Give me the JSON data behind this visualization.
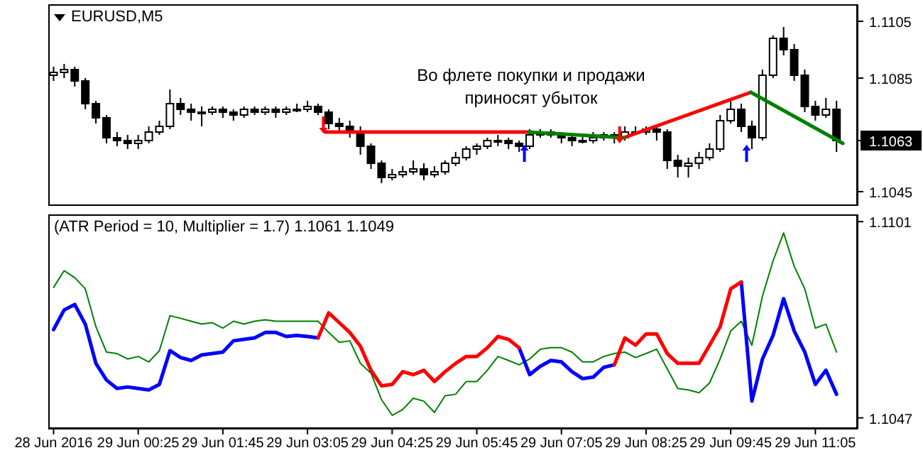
{
  "chart_data": [
    {
      "type": "candlestick",
      "title": "EURUSD,M5",
      "color": "#000000",
      "tick_labels": "y",
      "annotations": [
        "Во флете покупки и продажи приносят убыток"
      ],
      "x": [
        "2016-06-28T23:05",
        "2016-06-28T23:15",
        "2016-06-28T23:25",
        "2016-06-28T23:35",
        "2016-06-28T23:45",
        "2016-06-28T23:55",
        "2016-06-29T00:05",
        "2016-06-29T00:15",
        "2016-06-29T00:25",
        "2016-06-29T00:35",
        "2016-06-29T00:45",
        "2016-06-29T00:55",
        "2016-06-29T01:05",
        "2016-06-29T01:15",
        "2016-06-29T01:25",
        "2016-06-29T01:35",
        "2016-06-29T01:45",
        "2016-06-29T01:55",
        "2016-06-29T02:05",
        "2016-06-29T02:15",
        "2016-06-29T02:25",
        "2016-06-29T02:35",
        "2016-06-29T02:45",
        "2016-06-29T02:55",
        "2016-06-29T03:05",
        "2016-06-29T03:15",
        "2016-06-29T03:25",
        "2016-06-29T03:35",
        "2016-06-29T03:45",
        "2016-06-29T03:55",
        "2016-06-29T04:05",
        "2016-06-29T04:15",
        "2016-06-29T04:25",
        "2016-06-29T04:35",
        "2016-06-29T04:45",
        "2016-06-29T04:55",
        "2016-06-29T05:05",
        "2016-06-29T05:15",
        "2016-06-29T05:25",
        "2016-06-29T05:35",
        "2016-06-29T05:45",
        "2016-06-29T05:55",
        "2016-06-29T06:05",
        "2016-06-29T06:15",
        "2016-06-29T06:25",
        "2016-06-29T06:35",
        "2016-06-29T06:45",
        "2016-06-29T06:55",
        "2016-06-29T07:05",
        "2016-06-29T07:15",
        "2016-06-29T07:25",
        "2016-06-29T07:35",
        "2016-06-29T07:45",
        "2016-06-29T07:55",
        "2016-06-29T08:05",
        "2016-06-29T08:15",
        "2016-06-29T08:25",
        "2016-06-29T08:35",
        "2016-06-29T08:45",
        "2016-06-29T08:55",
        "2016-06-29T09:05",
        "2016-06-29T09:15",
        "2016-06-29T09:25",
        "2016-06-29T09:35",
        "2016-06-29T09:45",
        "2016-06-29T09:55",
        "2016-06-29T10:05",
        "2016-06-29T10:15",
        "2016-06-29T10:25",
        "2016-06-29T10:35",
        "2016-06-29T10:45",
        "2016-06-29T10:55",
        "2016-06-29T11:05",
        "2016-06-29T11:15",
        "2016-06-29T11:25"
      ],
      "ohlc": [
        [
          1.1086,
          1.1089,
          1.1084,
          1.1087
        ],
        [
          1.1087,
          1.109,
          1.1085,
          1.1088
        ],
        [
          1.1088,
          1.1089,
          1.1082,
          1.1084
        ],
        [
          1.1084,
          1.1085,
          1.1074,
          1.1076
        ],
        [
          1.1076,
          1.1077,
          1.1069,
          1.1071
        ],
        [
          1.1071,
          1.1072,
          1.1062,
          1.1064
        ],
        [
          1.1064,
          1.1066,
          1.1061,
          1.1063
        ],
        [
          1.1063,
          1.1065,
          1.106,
          1.1062
        ],
        [
          1.1062,
          1.1065,
          1.106,
          1.1063
        ],
        [
          1.1063,
          1.1068,
          1.1062,
          1.1066
        ],
        [
          1.1066,
          1.107,
          1.1065,
          1.1068
        ],
        [
          1.1068,
          1.1081,
          1.1067,
          1.1076
        ],
        [
          1.1076,
          1.1078,
          1.1072,
          1.1074
        ],
        [
          1.1074,
          1.1076,
          1.107,
          1.1073
        ],
        [
          1.1073,
          1.1075,
          1.1068,
          1.1073
        ],
        [
          1.1073,
          1.1075,
          1.1072,
          1.1074
        ],
        [
          1.1074,
          1.1075,
          1.1071,
          1.1073
        ],
        [
          1.1073,
          1.1074,
          1.107,
          1.1072
        ],
        [
          1.1072,
          1.1075,
          1.1071,
          1.1074
        ],
        [
          1.1074,
          1.1075,
          1.1072,
          1.1073
        ],
        [
          1.1073,
          1.1075,
          1.1072,
          1.1074
        ],
        [
          1.1074,
          1.1075,
          1.1071,
          1.1073
        ],
        [
          1.1073,
          1.1075,
          1.1072,
          1.1074
        ],
        [
          1.1074,
          1.1076,
          1.1073,
          1.1074
        ],
        [
          1.1074,
          1.1077,
          1.1073,
          1.1075
        ],
        [
          1.1075,
          1.1076,
          1.1072,
          1.1073
        ],
        [
          1.1073,
          1.1074,
          1.1067,
          1.1069
        ],
        [
          1.1069,
          1.1071,
          1.1066,
          1.1068
        ],
        [
          1.1068,
          1.107,
          1.1064,
          1.1066
        ],
        [
          1.1066,
          1.1068,
          1.1058,
          1.1061
        ],
        [
          1.1061,
          1.1062,
          1.1053,
          1.1055
        ],
        [
          1.1055,
          1.1056,
          1.1048,
          1.105
        ],
        [
          1.105,
          1.1053,
          1.1049,
          1.1051
        ],
        [
          1.1051,
          1.1054,
          1.105,
          1.1052
        ],
        [
          1.1052,
          1.1056,
          1.1051,
          1.1053
        ],
        [
          1.1053,
          1.1055,
          1.1049,
          1.1051
        ],
        [
          1.1051,
          1.1054,
          1.105,
          1.1052
        ],
        [
          1.1052,
          1.1056,
          1.1051,
          1.1055
        ],
        [
          1.1055,
          1.1059,
          1.1054,
          1.1057
        ],
        [
          1.1057,
          1.1061,
          1.1056,
          1.106
        ],
        [
          1.106,
          1.1062,
          1.1058,
          1.1061
        ],
        [
          1.1061,
          1.1064,
          1.106,
          1.1063
        ],
        [
          1.1063,
          1.1065,
          1.1061,
          1.1063
        ],
        [
          1.1063,
          1.1064,
          1.106,
          1.1062
        ],
        [
          1.1062,
          1.1063,
          1.1059,
          1.1061
        ],
        [
          1.1061,
          1.1067,
          1.106,
          1.1065
        ],
        [
          1.1065,
          1.1067,
          1.1064,
          1.1066
        ],
        [
          1.1066,
          1.1067,
          1.1064,
          1.1065
        ],
        [
          1.1065,
          1.1066,
          1.1062,
          1.1064
        ],
        [
          1.1064,
          1.1065,
          1.1061,
          1.1063
        ],
        [
          1.1063,
          1.1065,
          1.1062,
          1.1063
        ],
        [
          1.1063,
          1.1066,
          1.1062,
          1.1064
        ],
        [
          1.1064,
          1.1066,
          1.1063,
          1.1065
        ],
        [
          1.1065,
          1.1066,
          1.1062,
          1.1064
        ],
        [
          1.1064,
          1.1068,
          1.1063,
          1.1066
        ],
        [
          1.1066,
          1.1068,
          1.1065,
          1.1066
        ],
        [
          1.1066,
          1.1068,
          1.1065,
          1.1067
        ],
        [
          1.1067,
          1.1068,
          1.1063,
          1.1066
        ],
        [
          1.1066,
          1.1067,
          1.1053,
          1.1056
        ],
        [
          1.1056,
          1.1058,
          1.105,
          1.1054
        ],
        [
          1.1054,
          1.1057,
          1.105,
          1.1055
        ],
        [
          1.1055,
          1.1059,
          1.1053,
          1.1057
        ],
        [
          1.1057,
          1.1062,
          1.1056,
          1.106
        ],
        [
          1.106,
          1.1072,
          1.1059,
          1.107
        ],
        [
          1.107,
          1.1078,
          1.1069,
          1.1074
        ],
        [
          1.1074,
          1.1076,
          1.1066,
          1.1068
        ],
        [
          1.1068,
          1.107,
          1.106,
          1.1064
        ],
        [
          1.1064,
          1.1088,
          1.1063,
          1.1086
        ],
        [
          1.1086,
          1.11,
          1.1085,
          1.1099
        ],
        [
          1.1099,
          1.1103,
          1.1093,
          1.1095
        ],
        [
          1.1095,
          1.1097,
          1.1084,
          1.1086
        ],
        [
          1.1086,
          1.1088,
          1.1073,
          1.1075
        ],
        [
          1.1075,
          1.1077,
          1.107,
          1.1072
        ],
        [
          1.1072,
          1.1078,
          1.1071,
          1.1074
        ],
        [
          1.1074,
          1.1077,
          1.1059,
          1.1063
        ]
      ],
      "series": [
        {
          "type": "line",
          "color": "#ff0000",
          "x": [
            "2016-06-29T03:22",
            "2016-06-29T06:34",
            "2016-06-29T07:19",
            "2016-06-29T08:04",
            "2016-06-29T10:04"
          ],
          "values": [
            1.1066,
            1.1066,
            null,
            1.1064,
            1.108
          ]
        },
        {
          "type": "line",
          "color": "#008000",
          "x": [
            "2016-06-29T06:34",
            "2016-06-29T08:04",
            "2016-06-29T09:04",
            "2016-06-29T10:04",
            "2016-06-29T11:31"
          ],
          "values": [
            1.1066,
            1.1064,
            null,
            1.108,
            1.1062
          ]
        },
        {
          "type": "scatter",
          "color": "#ff0000",
          "x": [
            "2016-06-29T03:20",
            "2016-06-29T08:00"
          ],
          "values": [
            1.10685,
            1.1065
          ]
        },
        {
          "type": "scatter",
          "color": "#0000ff",
          "x": [
            "2016-06-29T06:30",
            "2016-06-29T10:00"
          ],
          "values": [
            1.10585,
            1.10585
          ]
        }
      ],
      "xlim": [
        "2016-06-28T23:00",
        "2016-06-29T11:45"
      ],
      "ylim": [
        1.104,
        1.1111
      ],
      "yticks": [
        1.1105,
        1.1085,
        1.1063,
        1.1045
      ]
    },
    {
      "type": "line",
      "title": "(ATR Period = 10, Multiplier = 1.7) 1.1061 1.1049",
      "x": [
        "2016-06-28T23:05",
        "2016-06-28T23:15",
        "2016-06-28T23:25",
        "2016-06-28T23:35",
        "2016-06-28T23:45",
        "2016-06-28T23:55",
        "2016-06-29T00:05",
        "2016-06-29T00:15",
        "2016-06-29T00:25",
        "2016-06-29T00:35",
        "2016-06-29T00:45",
        "2016-06-29T00:55",
        "2016-06-29T01:05",
        "2016-06-29T01:15",
        "2016-06-29T01:25",
        "2016-06-29T01:35",
        "2016-06-29T01:45",
        "2016-06-29T01:55",
        "2016-06-29T02:05",
        "2016-06-29T02:15",
        "2016-06-29T02:25",
        "2016-06-29T02:35",
        "2016-06-29T02:45",
        "2016-06-29T02:55",
        "2016-06-29T03:05",
        "2016-06-29T03:15",
        "2016-06-29T03:25",
        "2016-06-29T03:35",
        "2016-06-29T03:45",
        "2016-06-29T03:55",
        "2016-06-29T04:05",
        "2016-06-29T04:15",
        "2016-06-29T04:25",
        "2016-06-29T04:35",
        "2016-06-29T04:45",
        "2016-06-29T04:55",
        "2016-06-29T05:05",
        "2016-06-29T05:15",
        "2016-06-29T05:25",
        "2016-06-29T05:35",
        "2016-06-29T05:45",
        "2016-06-29T05:55",
        "2016-06-29T06:05",
        "2016-06-29T06:15",
        "2016-06-29T06:25",
        "2016-06-29T06:35",
        "2016-06-29T06:45",
        "2016-06-29T06:55",
        "2016-06-29T07:05",
        "2016-06-29T07:15",
        "2016-06-29T07:25",
        "2016-06-29T07:35",
        "2016-06-29T07:45",
        "2016-06-29T07:55",
        "2016-06-29T08:05",
        "2016-06-29T08:15",
        "2016-06-29T08:25",
        "2016-06-29T08:35",
        "2016-06-29T08:45",
        "2016-06-29T08:55",
        "2016-06-29T09:05",
        "2016-06-29T09:15",
        "2016-06-29T09:25",
        "2016-06-29T09:35",
        "2016-06-29T09:45",
        "2016-06-29T09:55",
        "2016-06-29T10:05",
        "2016-06-29T10:15",
        "2016-06-29T10:25",
        "2016-06-29T10:35",
        "2016-06-29T10:45",
        "2016-06-29T10:55",
        "2016-06-29T11:05",
        "2016-06-29T11:15",
        "2016-06-29T11:25"
      ],
      "series": [
        {
          "color": "#008000",
          "values": [
            1.10829,
            1.10875,
            1.10856,
            1.10825,
            1.10721,
            1.10651,
            1.10647,
            1.10632,
            1.10639,
            1.10624,
            1.10655,
            1.10751,
            1.10744,
            1.10736,
            1.10728,
            1.10732,
            1.10717,
            1.10736,
            1.10728,
            1.10736,
            1.1074,
            1.10736,
            1.10736,
            1.10736,
            1.10736,
            1.10736,
            1.10705,
            1.10678,
            1.10682,
            1.1062,
            1.10593,
            1.1052,
            1.10477,
            1.10493,
            1.10524,
            1.10516,
            1.10485,
            1.10531,
            1.10535,
            1.1057,
            1.1057,
            1.10601,
            1.10639,
            1.10628,
            1.10616,
            1.10632,
            1.10659,
            1.10663,
            1.10663,
            1.10651,
            1.10624,
            1.10624,
            1.10639,
            1.10647,
            1.10651,
            1.10636,
            1.10647,
            1.10659,
            1.10605,
            1.10551,
            1.10547,
            1.10539,
            1.10566,
            1.10632,
            1.10709,
            1.10736,
            1.1067,
            1.10805,
            1.10902,
            1.10979,
            1.10887,
            1.10825,
            1.10717,
            1.10728,
            1.10651
          ]
        },
        {
          "color": "#0000ff",
          "values": [
            1.10713,
            1.10767,
            1.10782,
            1.10728,
            1.1062,
            1.10574,
            1.10551,
            1.10555,
            1.10551,
            1.10547,
            1.10562,
            1.10655,
            1.10636,
            1.10628,
            1.10643,
            1.10647,
            1.10651,
            1.10682,
            1.10686,
            1.1069,
            1.10705,
            1.10705,
            1.10694,
            1.10697,
            1.10694,
            1.1069,
            null,
            null,
            null,
            null,
            null,
            null,
            null,
            null,
            null,
            null,
            null,
            null,
            null,
            null,
            null,
            null,
            null,
            null,
            1.10663,
            1.10589,
            1.10612,
            1.10628,
            1.10624,
            1.10597,
            1.10578,
            1.10582,
            1.10609,
            1.10616,
            null,
            null,
            null,
            null,
            null,
            null,
            null,
            null,
            null,
            null,
            null,
            1.10844,
            1.10516,
            1.10632,
            1.10697,
            1.10798,
            1.10709,
            1.10651,
            1.10562,
            1.10601,
            1.10535
          ]
        },
        {
          "color": "#ff0000",
          "values": [
            null,
            null,
            null,
            null,
            null,
            null,
            null,
            null,
            null,
            null,
            null,
            null,
            null,
            null,
            null,
            null,
            null,
            null,
            null,
            null,
            null,
            null,
            null,
            null,
            null,
            1.1069,
            1.10759,
            1.10732,
            1.10705,
            1.10667,
            1.10601,
            1.10558,
            1.10562,
            1.10597,
            1.10589,
            1.10601,
            1.1057,
            1.10597,
            1.1062,
            1.10639,
            1.10639,
            1.10663,
            1.10694,
            1.10686,
            1.10663,
            null,
            null,
            null,
            null,
            null,
            null,
            null,
            null,
            1.10616,
            1.1069,
            1.1067,
            1.10701,
            1.10701,
            1.10647,
            1.1062,
            1.1062,
            1.1062,
            1.1067,
            1.10721,
            1.10825,
            1.10844,
            null,
            null,
            null,
            null,
            null,
            null,
            null,
            null,
            null
          ]
        }
      ],
      "xlim": [
        "2016-06-28T23:00",
        "2016-06-29T11:45"
      ],
      "ylim": [
        1.1044,
        1.1103
      ],
      "yticks": [
        1.1101,
        1.1047
      ],
      "xticks": [
        {
          "value": "2016-06-28T23:05",
          "label": "28 Jun 2016"
        },
        {
          "value": "2016-06-29T00:25",
          "label": "29 Jun 00:25"
        },
        {
          "value": "2016-06-29T01:45",
          "label": "29 Jun 01:45"
        },
        {
          "value": "2016-06-29T03:05",
          "label": "29 Jun 03:05"
        },
        {
          "value": "2016-06-29T04:25",
          "label": "29 Jun 04:25"
        },
        {
          "value": "2016-06-29T05:45",
          "label": "29 Jun 05:45"
        },
        {
          "value": "2016-06-29T07:05",
          "label": "29 Jun 07:05"
        },
        {
          "value": "2016-06-29T08:25",
          "label": "29 Jun 08:25"
        },
        {
          "value": "2016-06-29T09:45",
          "label": "29 Jun 09:45"
        },
        {
          "value": "2016-06-29T11:05",
          "label": "29 Jun 11:05"
        }
      ]
    }
  ]
}
